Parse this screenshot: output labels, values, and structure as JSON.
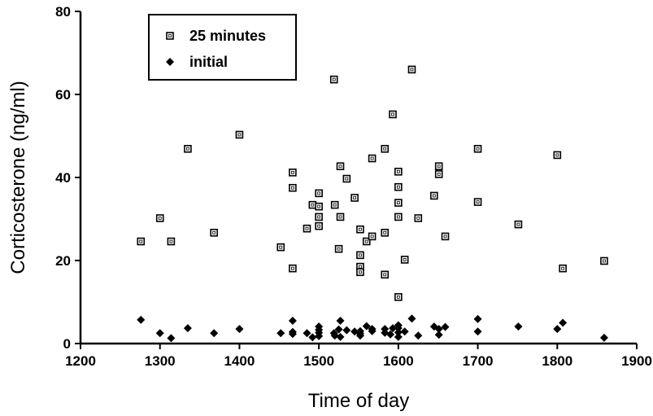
{
  "chart_data": {
    "type": "scatter",
    "title": "",
    "xlabel": "Time of day",
    "ylabel": "Corticosterone (ng/ml)",
    "xlim": [
      1200,
      1900
    ],
    "ylim": [
      0,
      80
    ],
    "xticks": [
      "1200",
      "1300",
      "1400",
      "1500",
      "1600",
      "1700",
      "1800",
      "1900"
    ],
    "yticks": [
      "0",
      "20",
      "40",
      "60",
      "80"
    ],
    "grid": false,
    "legend_position": "top-left",
    "series": [
      {
        "name": "25 minutes",
        "marker": "open-square",
        "color": "#000000",
        "points": [
          [
            1276,
            24.6
          ],
          [
            1300,
            30.2
          ],
          [
            1314,
            24.6
          ],
          [
            1335,
            46.9
          ],
          [
            1368,
            26.7
          ],
          [
            1400,
            50.3
          ],
          [
            1452,
            23.2
          ],
          [
            1467,
            41.2
          ],
          [
            1467,
            37.5
          ],
          [
            1467,
            18.1
          ],
          [
            1485,
            27.7
          ],
          [
            1492,
            33.4
          ],
          [
            1500,
            36.2
          ],
          [
            1500,
            33.0
          ],
          [
            1500,
            30.5
          ],
          [
            1500,
            28.3
          ],
          [
            1519,
            63.6
          ],
          [
            1520,
            33.4
          ],
          [
            1525,
            22.8
          ],
          [
            1527,
            42.7
          ],
          [
            1527,
            30.5
          ],
          [
            1535,
            39.7
          ],
          [
            1545,
            35.1
          ],
          [
            1552,
            27.5
          ],
          [
            1552,
            21.3
          ],
          [
            1552,
            18.5
          ],
          [
            1552,
            17.2
          ],
          [
            1560,
            24.6
          ],
          [
            1567,
            44.6
          ],
          [
            1567,
            25.8
          ],
          [
            1583,
            46.9
          ],
          [
            1583,
            26.7
          ],
          [
            1583,
            16.6
          ],
          [
            1593,
            55.2
          ],
          [
            1600,
            41.4
          ],
          [
            1600,
            37.7
          ],
          [
            1600,
            33.9
          ],
          [
            1600,
            30.5
          ],
          [
            1600,
            11.2
          ],
          [
            1608,
            20.2
          ],
          [
            1617,
            66.0
          ],
          [
            1625,
            30.2
          ],
          [
            1645,
            35.6
          ],
          [
            1651,
            42.7
          ],
          [
            1651,
            40.8
          ],
          [
            1659,
            25.8
          ],
          [
            1700,
            46.9
          ],
          [
            1700,
            34.1
          ],
          [
            1751,
            28.7
          ],
          [
            1800,
            45.4
          ],
          [
            1807,
            18.1
          ],
          [
            1859,
            19.9
          ]
        ]
      },
      {
        "name": "initial",
        "marker": "filled-diamond",
        "color": "#000000",
        "points": [
          [
            1276,
            5.7
          ],
          [
            1300,
            2.5
          ],
          [
            1314,
            1.3
          ],
          [
            1335,
            3.7
          ],
          [
            1368,
            2.5
          ],
          [
            1400,
            3.5
          ],
          [
            1452,
            2.5
          ],
          [
            1467,
            5.5
          ],
          [
            1467,
            2.8
          ],
          [
            1467,
            2.3
          ],
          [
            1485,
            2.5
          ],
          [
            1492,
            1.5
          ],
          [
            1500,
            4.1
          ],
          [
            1500,
            3.3
          ],
          [
            1500,
            2.6
          ],
          [
            1500,
            1.8
          ],
          [
            1519,
            2.5
          ],
          [
            1520,
            1.9
          ],
          [
            1525,
            3.4
          ],
          [
            1527,
            5.5
          ],
          [
            1527,
            1.6
          ],
          [
            1535,
            3.2
          ],
          [
            1545,
            2.9
          ],
          [
            1552,
            3.0
          ],
          [
            1552,
            2.4
          ],
          [
            1552,
            1.9
          ],
          [
            1560,
            4.2
          ],
          [
            1567,
            3.5
          ],
          [
            1567,
            3.0
          ],
          [
            1583,
            3.5
          ],
          [
            1583,
            2.6
          ],
          [
            1590,
            2.2
          ],
          [
            1593,
            3.7
          ],
          [
            1600,
            4.4
          ],
          [
            1600,
            3.7
          ],
          [
            1600,
            2.7
          ],
          [
            1600,
            1.6
          ],
          [
            1608,
            2.9
          ],
          [
            1617,
            6.0
          ],
          [
            1625,
            1.9
          ],
          [
            1645,
            4.1
          ],
          [
            1651,
            3.5
          ],
          [
            1651,
            2.1
          ],
          [
            1659,
            4.0
          ],
          [
            1700,
            5.9
          ],
          [
            1700,
            2.9
          ],
          [
            1751,
            4.1
          ],
          [
            1800,
            3.5
          ],
          [
            1807,
            5.0
          ],
          [
            1859,
            1.4
          ]
        ]
      }
    ]
  }
}
